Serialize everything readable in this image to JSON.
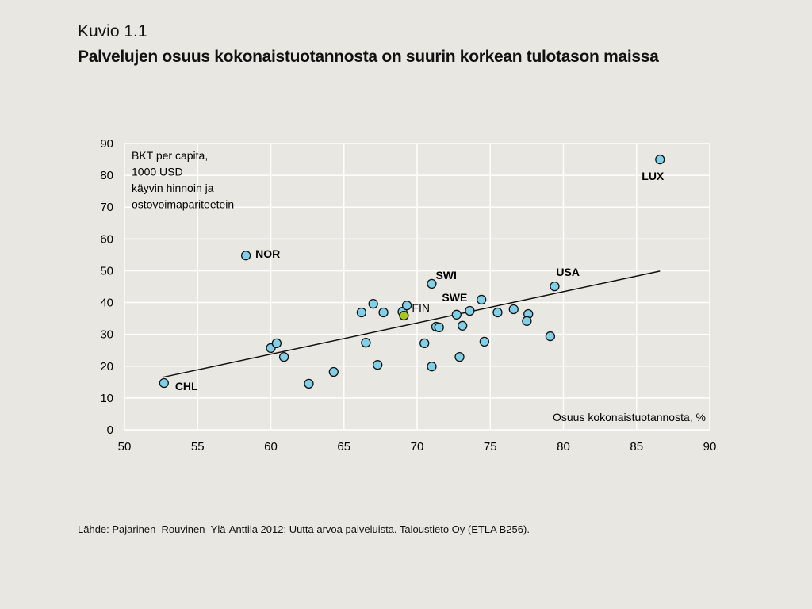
{
  "header": {
    "figure_number": "Kuvio 1.1",
    "title": "Palvelujen osuus kokonaistuotannosta on suurin korkean tulotason maissa"
  },
  "source": "Lähde: Pajarinen–Rouvinen–Ylä-Anttila 2012: Uutta arvoa palveluista. Taloustieto Oy (ETLA B256).",
  "chart_data": {
    "type": "scatter",
    "ylabel_lines": [
      "BKT per capita,",
      "1000 USD",
      "käyvin hinnoin ja",
      "ostovoimapariteetein"
    ],
    "xlabel": "Osuus kokonaistuotannosta, %",
    "xlim": [
      50,
      90
    ],
    "ylim": [
      0,
      90
    ],
    "xticks": [
      50,
      55,
      60,
      65,
      70,
      75,
      80,
      85,
      90
    ],
    "yticks": [
      0,
      10,
      20,
      30,
      40,
      50,
      60,
      70,
      80,
      90
    ],
    "grid": true,
    "colors": {
      "point": "#7fd0e8",
      "highlight": "#a6c81e",
      "outline": "#111111",
      "grid": "#ffffff",
      "trend": "#111111"
    },
    "points": [
      {
        "x": 52.7,
        "y": 14.7,
        "label": "CHL"
      },
      {
        "x": 58.3,
        "y": 54.8,
        "label": "NOR"
      },
      {
        "x": 60.0,
        "y": 25.7
      },
      {
        "x": 60.4,
        "y": 27.2
      },
      {
        "x": 60.9,
        "y": 22.9
      },
      {
        "x": 62.6,
        "y": 14.5
      },
      {
        "x": 64.3,
        "y": 18.2
      },
      {
        "x": 66.2,
        "y": 36.9
      },
      {
        "x": 66.5,
        "y": 27.4
      },
      {
        "x": 67.0,
        "y": 39.6
      },
      {
        "x": 67.3,
        "y": 20.4
      },
      {
        "x": 67.7,
        "y": 36.9
      },
      {
        "x": 69.0,
        "y": 37.1
      },
      {
        "x": 69.3,
        "y": 39.1
      },
      {
        "x": 70.5,
        "y": 27.2
      },
      {
        "x": 71.0,
        "y": 19.9
      },
      {
        "x": 71.0,
        "y": 45.9,
        "label": "SWI"
      },
      {
        "x": 71.3,
        "y": 32.4
      },
      {
        "x": 71.5,
        "y": 32.2
      },
      {
        "x": 72.7,
        "y": 36.2
      },
      {
        "x": 72.9,
        "y": 22.9
      },
      {
        "x": 73.1,
        "y": 32.7
      },
      {
        "x": 73.6,
        "y": 37.4,
        "label": "SWE"
      },
      {
        "x": 74.4,
        "y": 40.9
      },
      {
        "x": 74.6,
        "y": 27.7
      },
      {
        "x": 75.5,
        "y": 36.9
      },
      {
        "x": 76.6,
        "y": 37.9
      },
      {
        "x": 77.6,
        "y": 36.4
      },
      {
        "x": 77.5,
        "y": 34.2
      },
      {
        "x": 79.1,
        "y": 29.4
      },
      {
        "x": 79.4,
        "y": 45.1,
        "label": "USA"
      },
      {
        "x": 86.6,
        "y": 85.0,
        "label": "LUX"
      },
      {
        "x": 69.1,
        "y": 35.9,
        "label": "FIN",
        "highlight": true
      }
    ],
    "trendline": {
      "x": [
        52.6,
        86.6
      ],
      "y": [
        16.5,
        49.9
      ]
    }
  }
}
